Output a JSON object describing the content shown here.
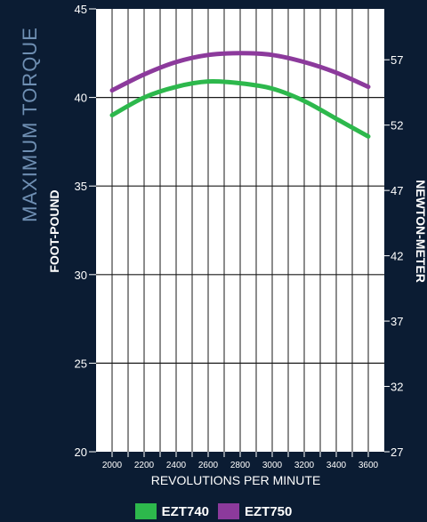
{
  "page": {
    "title": "MAXIMUM TORQUE"
  },
  "chart_data": {
    "type": "line",
    "title": "MAXIMUM TORQUE",
    "xlabel": "REVOLUTIONS PER MINUTE",
    "ylabel": "FOOT-POUND",
    "y2label": "NEWTON-METER",
    "xlim": [
      1900,
      3700
    ],
    "ylim": [
      20,
      45
    ],
    "xticks": [
      2000,
      2200,
      2400,
      2600,
      2800,
      3000,
      3200,
      3400,
      3600
    ],
    "xtick_labels": [
      "2000",
      "2200",
      "2400",
      "2600",
      "2800",
      "3000",
      "3200",
      "3400",
      "3600"
    ],
    "yticks": [
      20,
      25,
      30,
      35,
      40,
      45
    ],
    "ytick_labels": [
      "20",
      "25",
      "30",
      "35",
      "40",
      "45"
    ],
    "y2ticks": [
      27,
      32,
      37,
      42,
      47,
      52,
      57
    ],
    "y2tick_labels": [
      "27",
      "32",
      "37",
      "42",
      "47",
      "52",
      "57"
    ],
    "grid": true,
    "legend_position": "bottom",
    "series": [
      {
        "name": "EZT740",
        "color": "#2db84c",
        "x": [
          2000,
          2200,
          2400,
          2600,
          2800,
          3000,
          3200,
          3400,
          3600
        ],
        "y": [
          39.0,
          40.0,
          40.6,
          40.9,
          40.8,
          40.5,
          39.8,
          38.8,
          37.8
        ]
      },
      {
        "name": "EZT750",
        "color": "#8c3a9c",
        "x": [
          2000,
          2200,
          2400,
          2600,
          2800,
          3000,
          3200,
          3400,
          3600
        ],
        "y": [
          40.4,
          41.3,
          42.0,
          42.4,
          42.5,
          42.4,
          42.0,
          41.4,
          40.6
        ]
      }
    ]
  }
}
